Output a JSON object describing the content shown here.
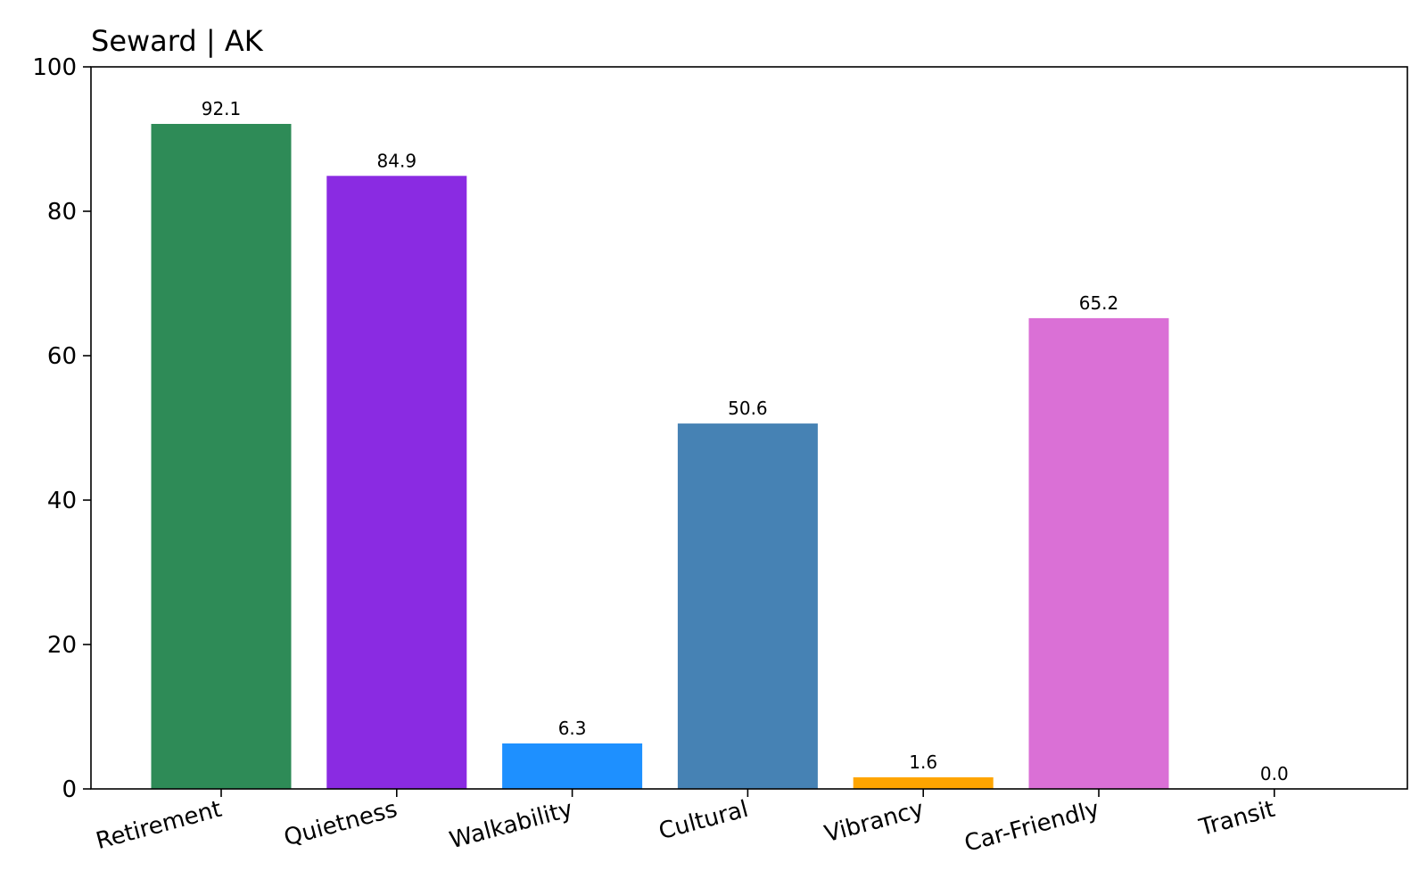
{
  "chart_data": {
    "type": "bar",
    "title": "Seward | AK",
    "xlabel": "",
    "ylabel": "",
    "categories": [
      "Retirement",
      "Quietness",
      "Walkability",
      "Cultural",
      "Vibrancy",
      "Car-Friendly",
      "Transit"
    ],
    "values": [
      92.1,
      84.9,
      6.3,
      50.6,
      1.6,
      65.2,
      0.0
    ],
    "value_labels": [
      "92.1",
      "84.9",
      "6.3",
      "50.6",
      "1.6",
      "65.2",
      "0.0"
    ],
    "colors": [
      "#2e8b57",
      "#8a2be2",
      "#1e90ff",
      "#4682b4",
      "#ffa500",
      "#da70d6",
      "#d3d3d3"
    ],
    "ylim": [
      0,
      100
    ],
    "yticks": [
      0,
      20,
      40,
      60,
      80,
      100
    ],
    "grid": false,
    "legend": "none"
  }
}
